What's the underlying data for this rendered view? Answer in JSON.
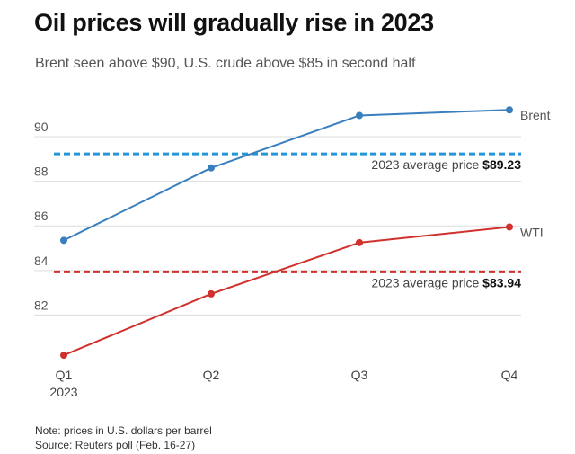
{
  "chart_data": {
    "type": "line",
    "title": "Oil prices will gradually rise in 2023",
    "subtitle": "Brent seen above $90, U.S. crude above $85 in second half",
    "categories": [
      "Q1",
      "Q2",
      "Q3",
      "Q4"
    ],
    "category_sublabels": [
      "2023",
      "",
      "",
      ""
    ],
    "series": [
      {
        "name": "Brent",
        "color": "#3a7fbd",
        "values": [
          85.35,
          88.6,
          90.95,
          91.2
        ]
      },
      {
        "name": "WTI",
        "color": "#d0312d",
        "values": [
          80.2,
          82.95,
          85.25,
          85.95
        ]
      }
    ],
    "averages": [
      {
        "series": "Brent",
        "label": "2023 average price",
        "value_label": "$89.23",
        "value": 89.23,
        "color": "#2596d8"
      },
      {
        "series": "WTI",
        "label": "2023 average price",
        "value_label": "$83.94",
        "value": 83.94,
        "color": "#d0312d"
      }
    ],
    "yticks": [
      82,
      84,
      86,
      88,
      90
    ],
    "ylim": [
      79.8,
      92.5
    ],
    "grid": true,
    "xlabel": "",
    "ylabel": ""
  },
  "notes": {
    "note": "Note: prices in U.S. dollars per barrel",
    "source": "Source: Reuters poll (Feb. 16-27)"
  }
}
